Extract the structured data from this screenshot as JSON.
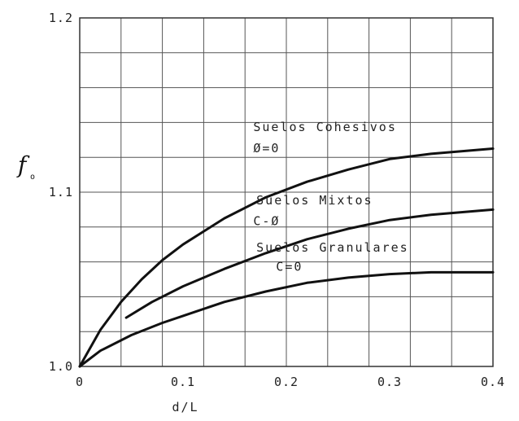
{
  "chart_data": {
    "type": "line",
    "title": "",
    "xlabel": "d/L",
    "ylabel": "f",
    "ylabel_sub": "o",
    "xlim": [
      0,
      0.4
    ],
    "ylim": [
      1.0,
      1.2
    ],
    "grid": true,
    "x_ticks": [
      {
        "value": 0,
        "label": "0"
      },
      {
        "value": 0.1,
        "label": "0.1"
      },
      {
        "value": 0.2,
        "label": "0.2"
      },
      {
        "value": 0.3,
        "label": "0.3"
      },
      {
        "value": 0.4,
        "label": "0.4"
      }
    ],
    "y_ticks": [
      {
        "value": 1.0,
        "label": "1.0"
      },
      {
        "value": 1.1,
        "label": "1.1"
      },
      {
        "value": 1.2,
        "label": "1.2"
      }
    ],
    "x_grid_step": 0.04,
    "y_grid_step": 0.02,
    "series": [
      {
        "x": [
          0,
          0.02,
          0.04,
          0.06,
          0.08,
          0.1,
          0.14,
          0.18,
          0.22,
          0.26,
          0.3,
          0.34,
          0.4
        ],
        "y": [
          1.0,
          1.021,
          1.037,
          1.05,
          1.061,
          1.07,
          1.085,
          1.097,
          1.106,
          1.113,
          1.119,
          1.122,
          1.125
        ]
      },
      {
        "x": [
          0.045,
          0.07,
          0.1,
          0.14,
          0.18,
          0.22,
          0.26,
          0.3,
          0.34,
          0.4
        ],
        "y": [
          1.028,
          1.037,
          1.046,
          1.056,
          1.065,
          1.073,
          1.079,
          1.084,
          1.087,
          1.09
        ]
      },
      {
        "x": [
          0,
          0.02,
          0.05,
          0.08,
          0.1,
          0.14,
          0.18,
          0.22,
          0.26,
          0.3,
          0.34,
          0.4
        ],
        "y": [
          1.0,
          1.009,
          1.018,
          1.025,
          1.029,
          1.037,
          1.043,
          1.048,
          1.051,
          1.053,
          1.054,
          1.054
        ]
      }
    ],
    "annotations": [
      {
        "text": "Suelos Cohesivos",
        "x": 0.168,
        "y": 1.135
      },
      {
        "text": "Ø=0",
        "x": 0.168,
        "y": 1.123
      },
      {
        "text": "Suelos Mixtos",
        "x": 0.171,
        "y": 1.093
      },
      {
        "text": "C-Ø",
        "x": 0.168,
        "y": 1.081
      },
      {
        "text": "Suelos Granulares",
        "x": 0.171,
        "y": 1.066
      },
      {
        "text": "C=0",
        "x": 0.19,
        "y": 1.055
      }
    ]
  }
}
